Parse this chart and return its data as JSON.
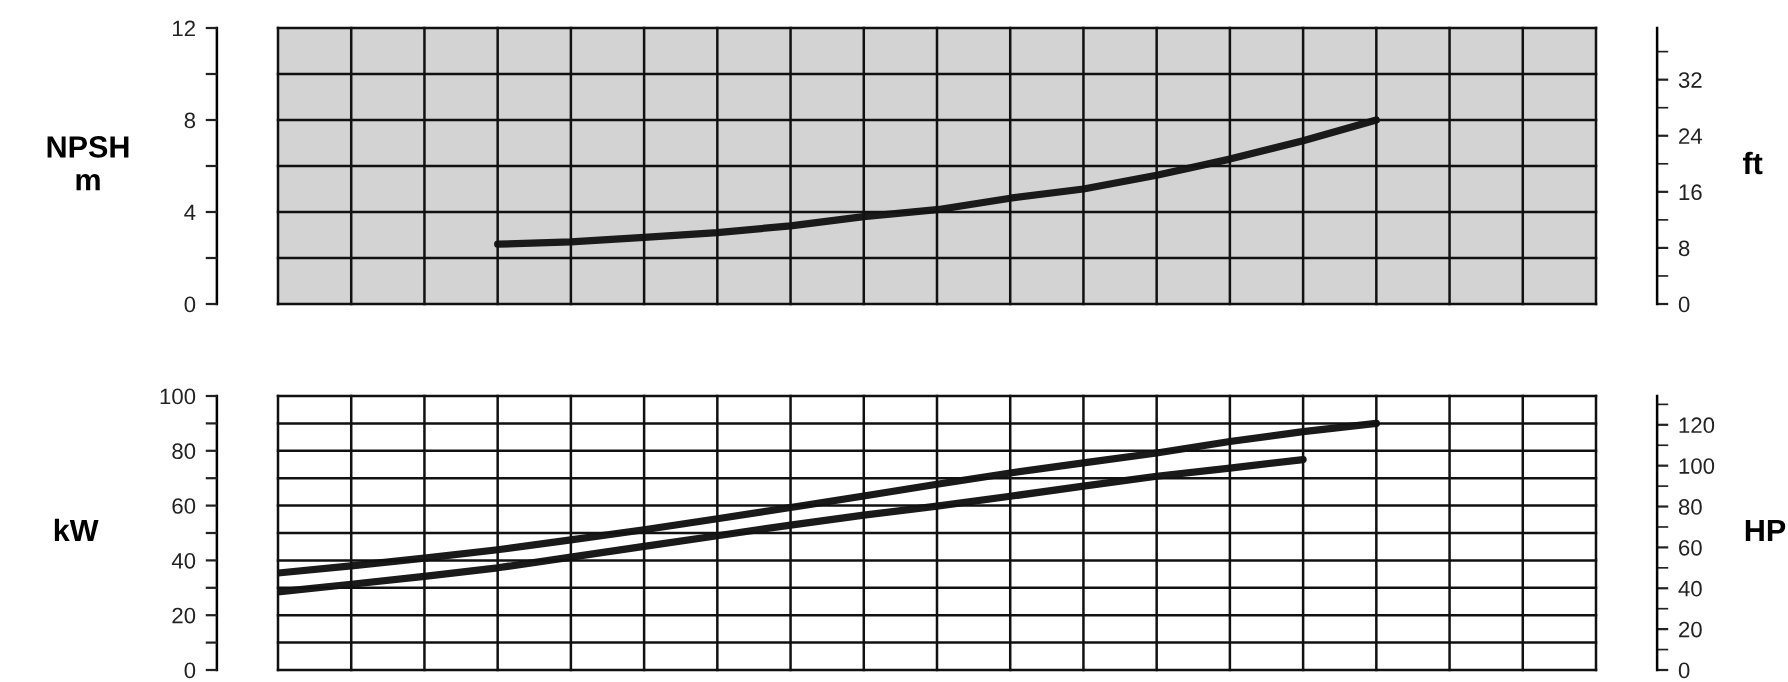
{
  "chart_data": [
    {
      "type": "line",
      "ylabel": "NPSH\nm",
      "y2label": "ft",
      "categories": [
        null,
        null,
        null,
        null,
        null,
        null,
        null,
        null,
        null,
        null,
        null,
        null,
        null,
        null,
        null,
        null,
        null,
        null,
        null
      ],
      "series": [
        {
          "color": "#1a1a1a",
          "values": [
            null,
            null,
            null,
            2.6,
            2.7,
            2.9,
            3.1,
            3.4,
            3.8,
            4.1,
            4.6,
            5.0,
            5.6,
            6.3,
            7.1,
            8.0,
            null,
            null,
            null
          ]
        }
      ],
      "ylim": [
        0,
        12
      ],
      "yticks": [
        0,
        {
          "value": 2,
          "label": null
        },
        4,
        {
          "value": 6,
          "label": null
        },
        8,
        {
          "value": 10,
          "label": null
        },
        12
      ],
      "y2lim": [
        0,
        39.37
      ],
      "y2ticks": [
        0,
        8,
        16,
        24,
        32
      ],
      "grid": true,
      "marker": "none",
      "line_style": "solid"
    },
    {
      "type": "line",
      "ylabel": "kW",
      "y2label": "HP",
      "categories": [
        null,
        null,
        null,
        null,
        null,
        null,
        null,
        null,
        null,
        null,
        null,
        null,
        null,
        null,
        null,
        null,
        null,
        null,
        null
      ],
      "series": [
        {
          "color": "#1a1a1a",
          "values": [
            35.4,
            38.0,
            40.8,
            43.9,
            47.5,
            51.2,
            55.2,
            59.3,
            63.5,
            67.8,
            71.9,
            75.6,
            79.2,
            83.4,
            87.0,
            90.0,
            null,
            null,
            null
          ]
        },
        {
          "color": "#1a1a1a",
          "values": [
            28.5,
            31.3,
            34.2,
            37.3,
            41.2,
            45.1,
            49.0,
            52.9,
            56.5,
            59.8,
            63.4,
            67.1,
            70.7,
            73.7,
            76.8,
            null,
            null,
            null,
            null
          ]
        }
      ],
      "ylim": [
        0,
        100
      ],
      "yticks": [
        0,
        {
          "value": 10,
          "label": null
        },
        20,
        {
          "value": 30,
          "label": null
        },
        40,
        {
          "value": 50,
          "label": null
        },
        60,
        {
          "value": 70,
          "label": null
        },
        80,
        {
          "value": 90,
          "label": null
        },
        100
      ],
      "y2lim": [
        0,
        134.1
      ],
      "y2ticks": [
        0,
        20,
        40,
        60,
        80,
        100,
        120
      ],
      "grid": true,
      "marker": "none",
      "line_style": "solid"
    }
  ]
}
